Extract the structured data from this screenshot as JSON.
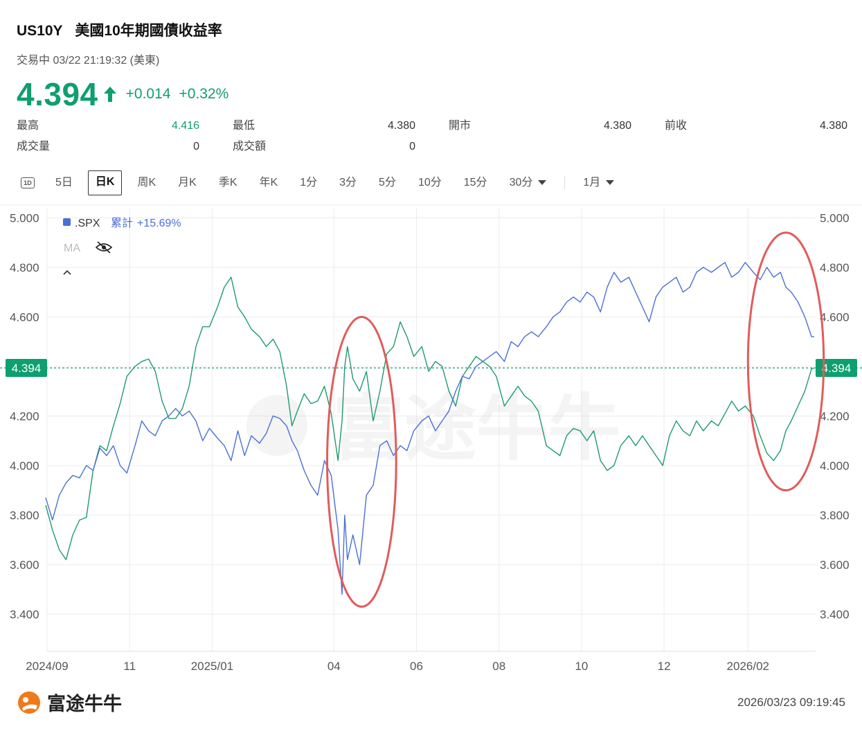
{
  "header": {
    "symbol": "US10Y",
    "name": "美國10年期國債收益率",
    "status": "交易中 03/22 21:19:32 (美東)",
    "price": "4.394",
    "change": "+0.014",
    "change_pct": "+0.32%"
  },
  "stats": {
    "high_label": "最高",
    "high": "4.416",
    "low_label": "最低",
    "low": "4.380",
    "open_label": "開市",
    "open": "4.380",
    "prev_label": "前收",
    "prev": "4.380",
    "volume_label": "成交量",
    "volume": "0",
    "turnover_label": "成交額",
    "turnover": "0"
  },
  "tabs": {
    "icon_1d": "1D",
    "t5d": "5日",
    "day": "日K",
    "week": "周K",
    "month": "月K",
    "quarter": "季K",
    "year": "年K",
    "m1": "1分",
    "m3": "3分",
    "m5": "5分",
    "m10": "10分",
    "m15": "15分",
    "m30": "30分",
    "range": "1月"
  },
  "colors": {
    "up": "#0e9f6e",
    "treasury_line": "#1e9a6e",
    "spx_line": "#4a6fd6",
    "circle": "#e05b5b",
    "grid": "#ececec"
  },
  "watermark": "富途牛牛",
  "footer": {
    "brand": "富途牛牛",
    "timestamp": "2026/03/23 09:19:45"
  },
  "chart_data": {
    "type": "line",
    "yticks": [
      5.0,
      4.8,
      4.6,
      4.4,
      4.2,
      4.0,
      3.8,
      3.6,
      3.4
    ],
    "ytick_labels": [
      "5.000",
      "4.800",
      "4.600",
      "4.200",
      "4.000",
      "3.800",
      "3.600",
      "3.400"
    ],
    "ylim": [
      3.25,
      5.04
    ],
    "current_value": 4.394,
    "current_label": "4.394",
    "xlim": [
      "2024-09-01",
      "2026-03-23"
    ],
    "xtick_labels": [
      "2024/09",
      "11",
      "2025/01",
      "04",
      "06",
      "08",
      "10",
      "12",
      "2026/02"
    ],
    "xtick_dates": [
      "2024-09-01",
      "2024-11-01",
      "2025-01-01",
      "2025-04-01",
      "2025-06-01",
      "2025-08-01",
      "2025-10-01",
      "2025-12-01",
      "2026-02-01"
    ],
    "legend": {
      "compare_name": ".SPX",
      "cum_label": "累計",
      "cum_value": "+15.69%",
      "ma_label": "MA"
    },
    "grid": true,
    "series": [
      {
        "name": "US10Y",
        "x": [
          "2024-08-31",
          "2024-09-05",
          "2024-09-10",
          "2024-09-15",
          "2024-09-20",
          "2024-09-25",
          "2024-09-30",
          "2024-10-05",
          "2024-10-10",
          "2024-10-15",
          "2024-10-20",
          "2024-10-25",
          "2024-10-30",
          "2024-11-05",
          "2024-11-10",
          "2024-11-15",
          "2024-11-20",
          "2024-11-25",
          "2024-11-30",
          "2024-12-05",
          "2024-12-10",
          "2024-12-15",
          "2024-12-20",
          "2024-12-25",
          "2024-12-30",
          "2025-01-05",
          "2025-01-10",
          "2025-01-15",
          "2025-01-20",
          "2025-01-25",
          "2025-01-30",
          "2025-02-05",
          "2025-02-10",
          "2025-02-15",
          "2025-02-20",
          "2025-02-25",
          "2025-03-01",
          "2025-03-05",
          "2025-03-10",
          "2025-03-15",
          "2025-03-20",
          "2025-03-25",
          "2025-03-30",
          "2025-04-04",
          "2025-04-07",
          "2025-04-09",
          "2025-04-11",
          "2025-04-15",
          "2025-04-20",
          "2025-04-25",
          "2025-04-30",
          "2025-05-05",
          "2025-05-10",
          "2025-05-15",
          "2025-05-20",
          "2025-05-25",
          "2025-05-30",
          "2025-06-05",
          "2025-06-10",
          "2025-06-15",
          "2025-06-20",
          "2025-06-25",
          "2025-06-30",
          "2025-07-05",
          "2025-07-10",
          "2025-07-15",
          "2025-07-20",
          "2025-07-25",
          "2025-07-30",
          "2025-08-05",
          "2025-08-10",
          "2025-08-15",
          "2025-08-20",
          "2025-08-25",
          "2025-08-30",
          "2025-09-05",
          "2025-09-10",
          "2025-09-15",
          "2025-09-20",
          "2025-09-25",
          "2025-09-30",
          "2025-10-05",
          "2025-10-10",
          "2025-10-15",
          "2025-10-20",
          "2025-10-25",
          "2025-10-30",
          "2025-11-05",
          "2025-11-10",
          "2025-11-15",
          "2025-11-20",
          "2025-11-25",
          "2025-11-30",
          "2025-12-05",
          "2025-12-10",
          "2025-12-15",
          "2025-12-20",
          "2025-12-25",
          "2025-12-30",
          "2026-01-05",
          "2026-01-10",
          "2026-01-15",
          "2026-01-20",
          "2026-01-25",
          "2026-01-30",
          "2026-02-05",
          "2026-02-10",
          "2026-02-15",
          "2026-02-20",
          "2026-02-25",
          "2026-03-01",
          "2026-03-05",
          "2026-03-10",
          "2026-03-15",
          "2026-03-20",
          "2026-03-22"
        ],
        "values": [
          3.84,
          3.74,
          3.66,
          3.62,
          3.72,
          3.78,
          3.79,
          3.98,
          4.08,
          4.06,
          4.16,
          4.25,
          4.36,
          4.4,
          4.42,
          4.43,
          4.38,
          4.26,
          4.19,
          4.19,
          4.23,
          4.32,
          4.48,
          4.56,
          4.56,
          4.64,
          4.72,
          4.76,
          4.64,
          4.6,
          4.55,
          4.52,
          4.48,
          4.51,
          4.46,
          4.32,
          4.16,
          4.22,
          4.29,
          4.25,
          4.26,
          4.32,
          4.21,
          4.02,
          4.18,
          4.4,
          4.48,
          4.35,
          4.3,
          4.38,
          4.18,
          4.3,
          4.45,
          4.48,
          4.58,
          4.52,
          4.44,
          4.48,
          4.38,
          4.42,
          4.4,
          4.3,
          4.24,
          4.36,
          4.4,
          4.44,
          4.42,
          4.4,
          4.36,
          4.24,
          4.28,
          4.32,
          4.28,
          4.26,
          4.22,
          4.08,
          4.06,
          4.04,
          4.12,
          4.15,
          4.14,
          4.1,
          4.14,
          4.02,
          3.98,
          4.0,
          4.08,
          4.12,
          4.08,
          4.12,
          4.08,
          4.04,
          4.0,
          4.12,
          4.18,
          4.14,
          4.12,
          4.18,
          4.14,
          4.18,
          4.16,
          4.21,
          4.26,
          4.22,
          4.24,
          4.2,
          4.12,
          4.05,
          4.02,
          4.06,
          4.14,
          4.18,
          4.24,
          4.3,
          4.39,
          4.394
        ]
      },
      {
        "name": ".SPX",
        "x": [
          "2024-08-31",
          "2024-09-05",
          "2024-09-10",
          "2024-09-15",
          "2024-09-20",
          "2024-09-25",
          "2024-09-30",
          "2024-10-05",
          "2024-10-10",
          "2024-10-15",
          "2024-10-20",
          "2024-10-25",
          "2024-10-30",
          "2024-11-05",
          "2024-11-10",
          "2024-11-15",
          "2024-11-20",
          "2024-11-25",
          "2024-11-30",
          "2024-12-05",
          "2024-12-10",
          "2024-12-15",
          "2024-12-20",
          "2024-12-25",
          "2024-12-30",
          "2025-01-05",
          "2025-01-10",
          "2025-01-15",
          "2025-01-20",
          "2025-01-25",
          "2025-01-30",
          "2025-02-05",
          "2025-02-10",
          "2025-02-15",
          "2025-02-20",
          "2025-02-25",
          "2025-03-01",
          "2025-03-05",
          "2025-03-10",
          "2025-03-15",
          "2025-03-20",
          "2025-03-25",
          "2025-03-30",
          "2025-04-04",
          "2025-04-07",
          "2025-04-09",
          "2025-04-11",
          "2025-04-15",
          "2025-04-20",
          "2025-04-25",
          "2025-04-30",
          "2025-05-05",
          "2025-05-10",
          "2025-05-15",
          "2025-05-20",
          "2025-05-25",
          "2025-05-30",
          "2025-06-05",
          "2025-06-10",
          "2025-06-15",
          "2025-06-20",
          "2025-06-25",
          "2025-06-30",
          "2025-07-05",
          "2025-07-10",
          "2025-07-15",
          "2025-07-20",
          "2025-07-25",
          "2025-07-30",
          "2025-08-05",
          "2025-08-10",
          "2025-08-15",
          "2025-08-20",
          "2025-08-25",
          "2025-08-30",
          "2025-09-05",
          "2025-09-10",
          "2025-09-15",
          "2025-09-20",
          "2025-09-25",
          "2025-09-30",
          "2025-10-05",
          "2025-10-10",
          "2025-10-15",
          "2025-10-20",
          "2025-10-25",
          "2025-10-30",
          "2025-11-05",
          "2025-11-10",
          "2025-11-15",
          "2025-11-20",
          "2025-11-25",
          "2025-11-30",
          "2025-12-05",
          "2025-12-10",
          "2025-12-15",
          "2025-12-20",
          "2025-12-25",
          "2025-12-30",
          "2026-01-05",
          "2026-01-10",
          "2026-01-15",
          "2026-01-20",
          "2026-01-25",
          "2026-01-30",
          "2026-02-05",
          "2026-02-10",
          "2026-02-15",
          "2026-02-20",
          "2026-02-25",
          "2026-03-01",
          "2026-03-05",
          "2026-03-10",
          "2026-03-15",
          "2026-03-20",
          "2026-03-22"
        ],
        "values": [
          3.87,
          3.78,
          3.88,
          3.93,
          3.96,
          3.95,
          4.0,
          3.98,
          4.07,
          4.04,
          4.08,
          4.0,
          3.97,
          4.08,
          4.18,
          4.14,
          4.12,
          4.18,
          4.2,
          4.23,
          4.2,
          4.22,
          4.18,
          4.1,
          4.15,
          4.11,
          4.08,
          4.02,
          4.14,
          4.04,
          4.12,
          4.09,
          4.13,
          4.2,
          4.19,
          4.16,
          4.1,
          4.06,
          3.98,
          3.92,
          3.88,
          4.02,
          3.96,
          3.74,
          3.48,
          3.8,
          3.62,
          3.72,
          3.6,
          3.88,
          3.92,
          4.08,
          4.1,
          4.04,
          4.08,
          4.06,
          4.14,
          4.18,
          4.2,
          4.14,
          4.18,
          4.22,
          4.3,
          4.36,
          4.35,
          4.4,
          4.42,
          4.44,
          4.46,
          4.42,
          4.5,
          4.48,
          4.52,
          4.54,
          4.52,
          4.56,
          4.6,
          4.62,
          4.66,
          4.68,
          4.66,
          4.7,
          4.68,
          4.62,
          4.72,
          4.78,
          4.74,
          4.76,
          4.7,
          4.64,
          4.58,
          4.68,
          4.72,
          4.74,
          4.76,
          4.7,
          4.72,
          4.78,
          4.8,
          4.78,
          4.8,
          4.82,
          4.76,
          4.78,
          4.82,
          4.78,
          4.75,
          4.8,
          4.76,
          4.78,
          4.72,
          4.7,
          4.66,
          4.6,
          4.52,
          4.52
        ]
      }
    ],
    "highlights": [
      {
        "shape": "ellipse",
        "x_range": [
          "2025-03-27",
          "2025-05-17"
        ],
        "y_range": [
          3.43,
          4.6
        ]
      },
      {
        "shape": "ellipse",
        "x_range": [
          "2026-02-01",
          "2026-03-29"
        ],
        "y_range": [
          3.9,
          4.94
        ]
      }
    ]
  }
}
